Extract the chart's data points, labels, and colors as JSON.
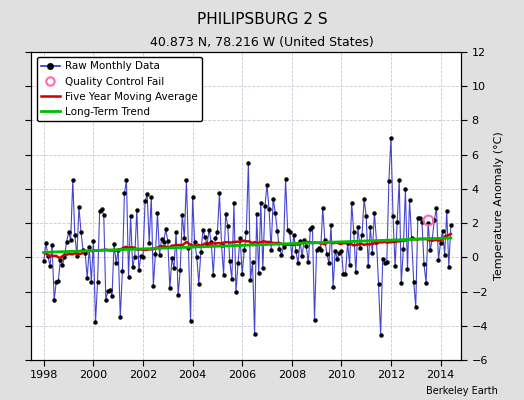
{
  "title": "PHILIPSBURG 2 S",
  "subtitle": "40.873 N, 78.216 W (United States)",
  "ylabel_right": "Temperature Anomaly (°C)",
  "attribution": "Berkeley Earth",
  "ylim": [
    -6,
    12
  ],
  "yticks": [
    -6,
    -4,
    -2,
    0,
    2,
    4,
    6,
    8,
    10,
    12
  ],
  "xlim": [
    1997.5,
    2014.83
  ],
  "xticks": [
    1998,
    2000,
    2002,
    2004,
    2006,
    2008,
    2010,
    2012,
    2014
  ],
  "fig_bg_color": "#e0e0e0",
  "plot_bg_color": "#ffffff",
  "grid_color": "#c8c8d8",
  "raw_color": "#3030cc",
  "ma_color": "#cc0000",
  "trend_color": "#00bb00",
  "qc_color": "#ff69b4",
  "title_fontsize": 11,
  "subtitle_fontsize": 9,
  "tick_fontsize": 8,
  "ylabel_fontsize": 8,
  "legend_fontsize": 7.5,
  "qc_fail_x": [
    2013.5
  ],
  "qc_fail_y": [
    2.2
  ]
}
